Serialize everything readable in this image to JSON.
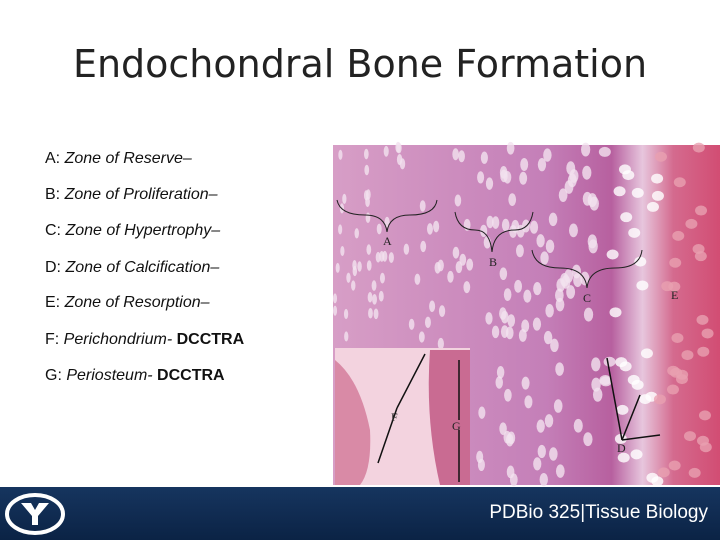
{
  "header": {
    "title": "Endochondral Bone Formation"
  },
  "list": [
    {
      "letter": "A:",
      "term": "Zone of Reserve–"
    },
    {
      "letter": "B:",
      "term": "Zone of Proliferation–"
    },
    {
      "letter": "C:",
      "term": "Zone of Hypertrophy–"
    },
    {
      "letter": "D:",
      "term": "Zone of Calcification–"
    },
    {
      "letter": "E:",
      "term": "Zone of Resorption–"
    },
    {
      "letter": "F:",
      "term": "Perichondrium-",
      "note": "DCCTRA"
    },
    {
      "letter": "G:",
      "term": "Periosteum-",
      "note": "DCCTRA"
    }
  ],
  "image": {
    "labels": [
      "A",
      "B",
      "C",
      "E",
      "F",
      "G",
      "D"
    ]
  },
  "footer": {
    "course": "PDBio 325",
    "separator": "|",
    "subject": "Tissue Biology"
  }
}
